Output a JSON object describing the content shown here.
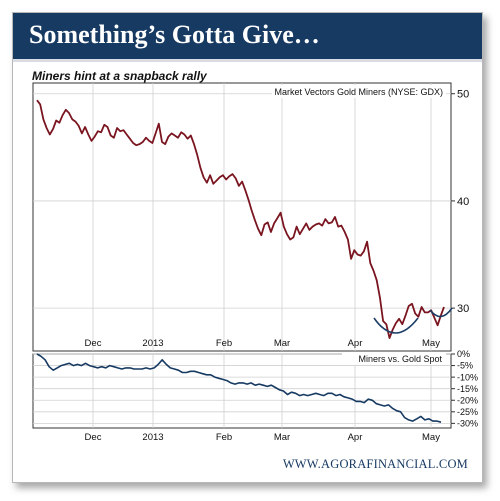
{
  "banner": {
    "title": "Something’s Gotta Give…"
  },
  "subtitle": "Miners hint at a snapback rally",
  "footer": "WWW.AGORAFINANCIAL.COM",
  "colors": {
    "banner": "#173a63",
    "main_line": "#7a1520",
    "ratio_line": "#173a63",
    "highlight_arc": "#1c3d66"
  },
  "chart_data": [
    {
      "type": "line",
      "title": "Market Vectors Gold Miners (NYSE: GDX)",
      "x_tick_labels": [
        "Dec",
        "2013",
        "Feb",
        "Mar",
        "Apr",
        "May"
      ],
      "y_tick_labels": [
        "50",
        "40",
        "30"
      ],
      "ylim": [
        26,
        51
      ],
      "grid": true,
      "annotations": [
        "two arcs highlighting recent lows"
      ],
      "series": [
        {
          "values": [
            49.4,
            49.0,
            47.6,
            46.8,
            46.2,
            46.7,
            47.5,
            47.3,
            48.0,
            48.5,
            48.2,
            47.6,
            47.4,
            47.0,
            46.3,
            46.9,
            46.2,
            45.6,
            46.0,
            46.5,
            46.4,
            47.1,
            46.9,
            46.1,
            45.9,
            46.8,
            46.5,
            46.6,
            46.2,
            45.8,
            45.4,
            45.2,
            45.3,
            45.5,
            45.9,
            45.6,
            45.4,
            46.3,
            47.2,
            45.5,
            45.3,
            46.0,
            46.3,
            46.1,
            45.9,
            46.4,
            46.2,
            45.8,
            46.1,
            45.3,
            44.3,
            43.1,
            42.2,
            41.7,
            42.4,
            41.6,
            41.9,
            42.2,
            42.4,
            42.0,
            42.3,
            42.5,
            42.1,
            41.4,
            41.8,
            41.0,
            40.1,
            39.1,
            38.2,
            37.4,
            36.8,
            37.8,
            38.0,
            37.1,
            37.9,
            38.4,
            38.9,
            37.6,
            36.9,
            36.4,
            36.6,
            37.6,
            36.9,
            37.4,
            37.9,
            37.3,
            37.6,
            37.8,
            37.9,
            37.7,
            38.3,
            37.9,
            38.0,
            38.5,
            37.6,
            37.7,
            37.1,
            36.4,
            34.6,
            35.4,
            35.0,
            34.9,
            35.3,
            36.2,
            34.2,
            33.5,
            32.6,
            31.0,
            28.8,
            28.5,
            27.2,
            28.0,
            28.6,
            29.0,
            28.5,
            29.3,
            30.2,
            30.4,
            29.5,
            29.2,
            30.1,
            29.6,
            29.6,
            29.8,
            29.1,
            28.4,
            29.3,
            30.1
          ]
        }
      ]
    },
    {
      "type": "line",
      "title": "Miners vs. Gold Spot",
      "x_tick_labels": [
        "Dec",
        "2013",
        "Feb",
        "Mar",
        "Apr",
        "May"
      ],
      "y_tick_labels": [
        "0%",
        "-5%",
        "-10%",
        "-15%",
        "-20%",
        "-25%",
        "-30%"
      ],
      "ylim": [
        -32,
        0
      ],
      "grid": true,
      "series": [
        {
          "values": [
            0,
            -1,
            -2.5,
            -5.5,
            -7,
            -6,
            -5,
            -4.5,
            -4,
            -5,
            -4.5,
            -5,
            -4,
            -5,
            -5.5,
            -6,
            -5.5,
            -6,
            -5,
            -5.5,
            -6,
            -6.5,
            -6,
            -6,
            -6.5,
            -6.5,
            -6.5,
            -6,
            -6.5,
            -6,
            -4.5,
            -2.5,
            -4.5,
            -6,
            -6.5,
            -7,
            -8,
            -8,
            -7.5,
            -7.5,
            -8,
            -8.5,
            -9,
            -9,
            -10,
            -10.5,
            -11,
            -11.5,
            -12.5,
            -13,
            -12.5,
            -12.5,
            -13,
            -12.5,
            -13.5,
            -13,
            -13.5,
            -14,
            -13.5,
            -14.5,
            -15.5,
            -16,
            -17.5,
            -16.5,
            -17,
            -18,
            -17.5,
            -18,
            -17.5,
            -17,
            -17.5,
            -18,
            -17,
            -17,
            -18,
            -17.5,
            -18.5,
            -19,
            -19.5,
            -20.5,
            -20.5,
            -21,
            -19.5,
            -20,
            -21.5,
            -22,
            -22.5,
            -22,
            -23.5,
            -24.5,
            -25,
            -27.5,
            -28.5,
            -29,
            -28,
            -27,
            -28.5,
            -28,
            -29,
            -29,
            -29.5
          ]
        }
      ]
    }
  ]
}
